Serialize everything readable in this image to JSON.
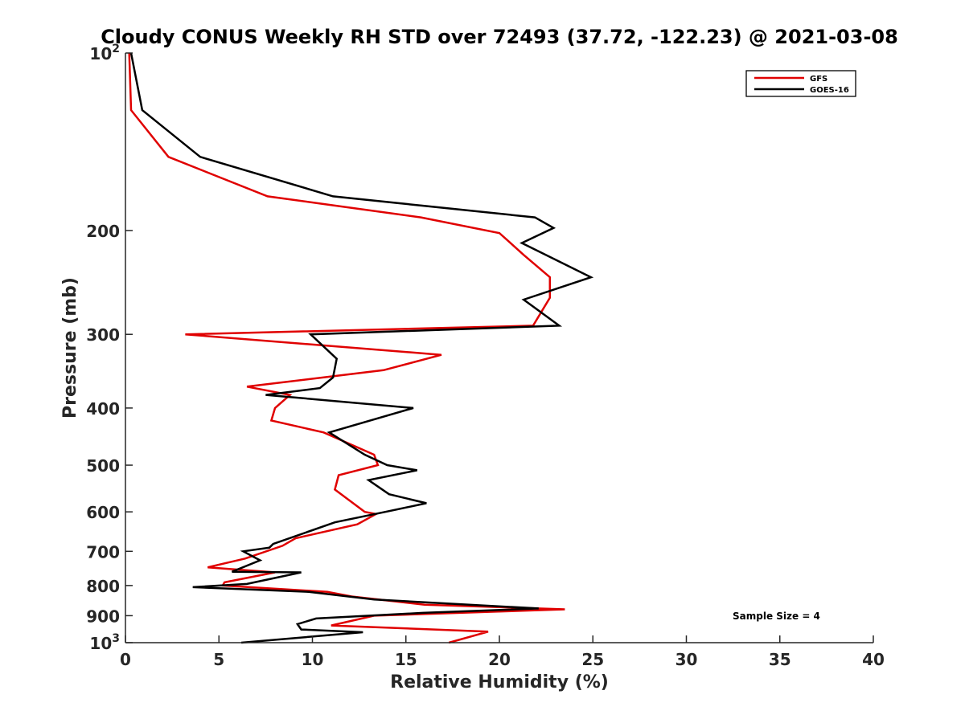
{
  "chart_data": {
    "type": "line",
    "title": "Cloudy CONUS Weekly RH STD over 72493 (37.72, -122.23) @ 2021-03-08",
    "xlabel": "Relative Humidity (%)",
    "ylabel": "Pressure (mb)",
    "xlim": [
      0,
      40
    ],
    "ylim": [
      100,
      1000
    ],
    "y_scale": "log",
    "y_reversed": true,
    "grid": false,
    "x_ticks": [
      "0",
      "5",
      "10",
      "15",
      "20",
      "25",
      "30",
      "35",
      "40"
    ],
    "y_ticks": [
      {
        "base": "10",
        "exp": "2",
        "label": "",
        "value": 100
      },
      {
        "label": "200",
        "value": 200
      },
      {
        "label": "300",
        "value": 300
      },
      {
        "label": "400",
        "value": 400
      },
      {
        "label": "500",
        "value": 500
      },
      {
        "label": "600",
        "value": 600
      },
      {
        "label": "700",
        "value": 700
      },
      {
        "label": "800",
        "value": 800
      },
      {
        "label": "900",
        "value": 900
      },
      {
        "base": "10",
        "exp": "3",
        "label": "",
        "value": 1000
      }
    ],
    "legend_position": "top-right",
    "annotation": "Sample Size = 4",
    "series": [
      {
        "name": "GFS",
        "color": "#e00000",
        "points": [
          [
            0.2,
            100
          ],
          [
            0.3,
            125
          ],
          [
            2.3,
            150
          ],
          [
            7.6,
            175
          ],
          [
            15.8,
            190
          ],
          [
            20.0,
            202
          ],
          [
            21.3,
            220
          ],
          [
            22.7,
            240
          ],
          [
            22.7,
            260
          ],
          [
            21.8,
            290
          ],
          [
            3.2,
            300
          ],
          [
            16.9,
            325
          ],
          [
            13.8,
            345
          ],
          [
            6.5,
            368
          ],
          [
            8.8,
            380
          ],
          [
            8.0,
            400
          ],
          [
            7.8,
            420
          ],
          [
            10.6,
            440
          ],
          [
            13.3,
            480
          ],
          [
            13.5,
            500
          ],
          [
            11.4,
            520
          ],
          [
            11.2,
            550
          ],
          [
            12.8,
            600
          ],
          [
            13.4,
            605
          ],
          [
            12.4,
            630
          ],
          [
            9.1,
            665
          ],
          [
            8.4,
            685
          ],
          [
            6.4,
            720
          ],
          [
            4.4,
            745
          ],
          [
            8.0,
            760
          ],
          [
            5.3,
            790
          ],
          [
            5.2,
            800
          ],
          [
            10.8,
            820
          ],
          [
            12.1,
            835
          ],
          [
            16.0,
            862
          ],
          [
            23.5,
            878
          ],
          [
            13.3,
            900
          ],
          [
            11.0,
            935
          ],
          [
            19.4,
            958
          ],
          [
            17.3,
            1000
          ]
        ]
      },
      {
        "name": "GOES-16",
        "color": "#000000",
        "points": [
          [
            0.3,
            100
          ],
          [
            0.9,
            125
          ],
          [
            4.0,
            150
          ],
          [
            11.1,
            175
          ],
          [
            21.9,
            190
          ],
          [
            22.9,
            198
          ],
          [
            21.2,
            210
          ],
          [
            24.9,
            240
          ],
          [
            21.3,
            262
          ],
          [
            23.2,
            290
          ],
          [
            9.9,
            300
          ],
          [
            11.3,
            330
          ],
          [
            11.1,
            355
          ],
          [
            10.4,
            370
          ],
          [
            7.5,
            380
          ],
          [
            15.4,
            400
          ],
          [
            10.9,
            440
          ],
          [
            12.8,
            480
          ],
          [
            14.0,
            500
          ],
          [
            15.6,
            510
          ],
          [
            13.0,
            530
          ],
          [
            14.1,
            560
          ],
          [
            16.1,
            580
          ],
          [
            13.9,
            600
          ],
          [
            11.2,
            625
          ],
          [
            7.9,
            680
          ],
          [
            7.7,
            690
          ],
          [
            6.3,
            700
          ],
          [
            7.2,
            725
          ],
          [
            5.7,
            758
          ],
          [
            9.4,
            760
          ],
          [
            6.5,
            795
          ],
          [
            3.6,
            805
          ],
          [
            9.8,
            820
          ],
          [
            13.3,
            845
          ],
          [
            22.1,
            875
          ],
          [
            15.9,
            890
          ],
          [
            10.2,
            910
          ],
          [
            9.2,
            930
          ],
          [
            9.4,
            950
          ],
          [
            12.7,
            960
          ],
          [
            6.2,
            1000
          ]
        ]
      }
    ]
  }
}
